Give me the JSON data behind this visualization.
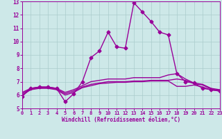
{
  "xlabel": "Windchill (Refroidissement éolien,°C)",
  "xlim": [
    0,
    23
  ],
  "ylim": [
    5,
    13
  ],
  "xticks": [
    0,
    1,
    2,
    3,
    4,
    5,
    6,
    7,
    8,
    9,
    10,
    11,
    12,
    13,
    14,
    15,
    16,
    17,
    18,
    19,
    20,
    21,
    22,
    23
  ],
  "yticks": [
    5,
    6,
    7,
    8,
    9,
    10,
    11,
    12,
    13
  ],
  "bg_color": "#cde8e8",
  "line_color": "#990099",
  "grid_color": "#aacccc",
  "series": [
    {
      "x": [
        0,
        1,
        2,
        3,
        4,
        5,
        6,
        7,
        8,
        9,
        10,
        11,
        12,
        13,
        14,
        15,
        16,
        17,
        18,
        19,
        20,
        21,
        22,
        23
      ],
      "y": [
        5.9,
        6.5,
        6.6,
        6.6,
        6.5,
        5.5,
        6.1,
        7.0,
        8.8,
        9.3,
        10.7,
        9.6,
        9.5,
        12.9,
        12.2,
        11.5,
        10.7,
        10.5,
        7.6,
        7.0,
        6.9,
        6.5,
        6.4,
        6.3
      ],
      "marker": "D",
      "markersize": 2.5,
      "linewidth": 1.0
    },
    {
      "x": [
        0,
        1,
        2,
        3,
        4,
        5,
        6,
        7,
        8,
        9,
        10,
        11,
        12,
        13,
        14,
        15,
        16,
        17,
        18,
        19,
        20,
        21,
        22,
        23
      ],
      "y": [
        6.2,
        6.5,
        6.6,
        6.6,
        6.5,
        6.2,
        6.4,
        6.7,
        7.0,
        7.1,
        7.2,
        7.2,
        7.2,
        7.3,
        7.3,
        7.3,
        7.3,
        7.5,
        7.6,
        7.2,
        6.9,
        6.8,
        6.5,
        6.4
      ],
      "marker": null,
      "markersize": 0,
      "linewidth": 1.0
    },
    {
      "x": [
        0,
        1,
        2,
        3,
        4,
        5,
        6,
        7,
        8,
        9,
        10,
        11,
        12,
        13,
        14,
        15,
        16,
        17,
        18,
        19,
        20,
        21,
        22,
        23
      ],
      "y": [
        6.1,
        6.45,
        6.55,
        6.55,
        6.45,
        6.1,
        6.3,
        6.6,
        6.8,
        6.9,
        7.0,
        7.0,
        7.0,
        7.05,
        7.05,
        7.1,
        7.1,
        7.1,
        7.2,
        7.1,
        6.85,
        6.75,
        6.45,
        6.35
      ],
      "marker": null,
      "markersize": 0,
      "linewidth": 1.0
    },
    {
      "x": [
        0,
        1,
        2,
        3,
        4,
        5,
        6,
        7,
        8,
        9,
        10,
        11,
        12,
        13,
        14,
        15,
        16,
        17,
        18,
        19,
        20,
        21,
        22,
        23
      ],
      "y": [
        6.0,
        6.4,
        6.5,
        6.5,
        6.4,
        6.0,
        6.2,
        6.55,
        6.7,
        6.85,
        6.9,
        6.95,
        6.95,
        7.0,
        7.0,
        7.05,
        7.05,
        7.05,
        6.65,
        6.65,
        6.75,
        6.6,
        6.38,
        6.3
      ],
      "marker": null,
      "markersize": 0,
      "linewidth": 1.0
    }
  ]
}
